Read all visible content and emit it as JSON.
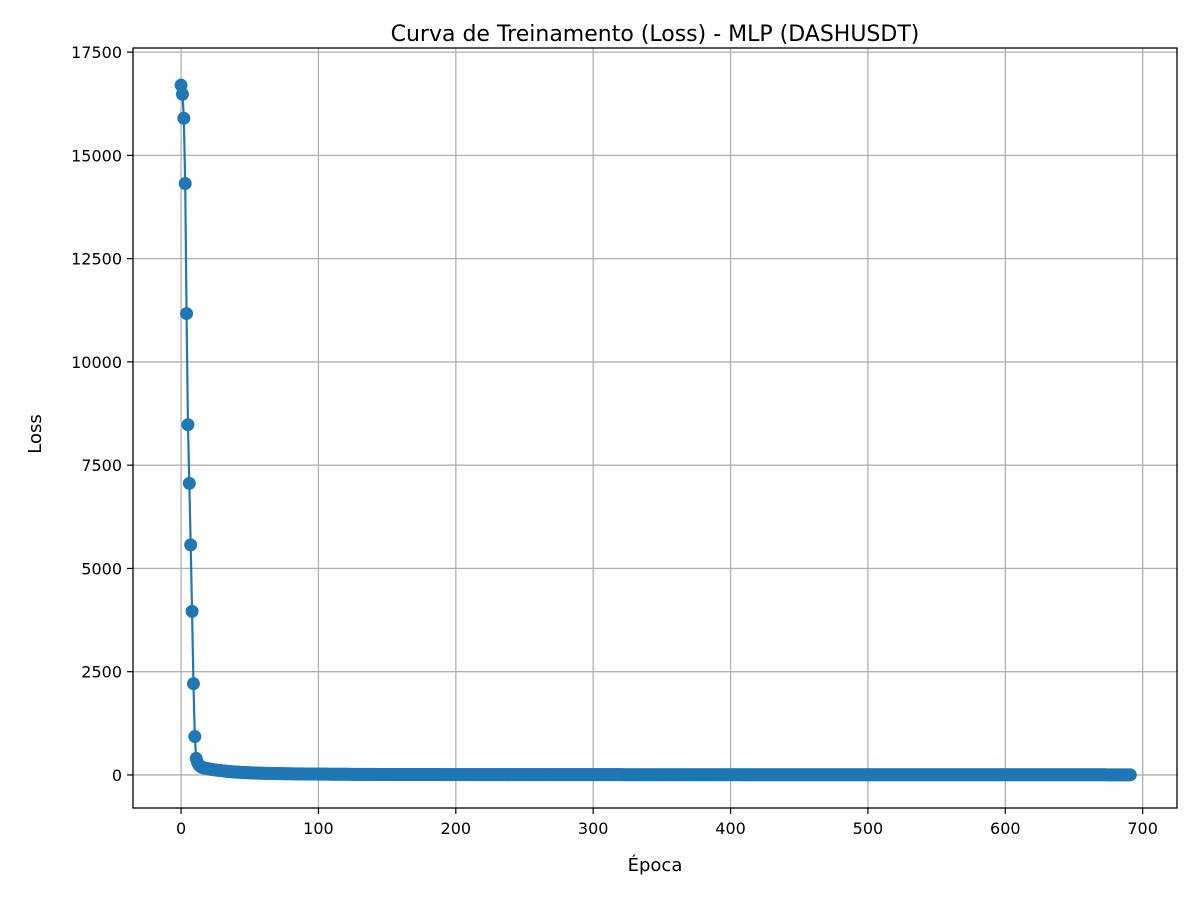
{
  "chart_data": {
    "type": "line",
    "title": "Curva de Treinamento (Loss) - MLP (DASHUSDT)",
    "xlabel": "Época",
    "ylabel": "Loss",
    "xlim": [
      -35,
      725
    ],
    "ylim": [
      -800,
      17600
    ],
    "x_ticks": [
      0,
      100,
      200,
      300,
      400,
      500,
      600,
      700
    ],
    "x_tick_labels": [
      "0",
      "100",
      "200",
      "300",
      "400",
      "500",
      "600",
      "700"
    ],
    "y_ticks": [
      0,
      2500,
      5000,
      7500,
      10000,
      12500,
      15000,
      17500
    ],
    "y_tick_labels": [
      "0",
      "2500",
      "5000",
      "7500",
      "10000",
      "12500",
      "15000",
      "17500"
    ],
    "grid": true,
    "marker": "circle",
    "color": "#1f77b4",
    "series": [
      {
        "x": [
          0,
          1,
          2,
          3,
          4,
          5,
          6,
          7,
          8,
          9,
          10,
          11,
          12,
          13,
          14,
          15,
          16,
          18,
          20,
          22,
          25,
          28,
          30,
          33,
          36,
          40,
          45,
          50,
          55,
          60,
          70,
          80,
          90,
          100,
          110,
          120,
          130,
          140,
          150,
          175,
          200,
          250,
          300,
          350,
          400,
          450,
          500,
          550,
          600,
          650,
          691
        ],
        "values": [
          16700,
          16480,
          15900,
          14320,
          11170,
          8480,
          7060,
          5570,
          3960,
          2210,
          930,
          400,
          300,
          240,
          210,
          190,
          175,
          160,
          148,
          135,
          120,
          108,
          100,
          90,
          80,
          70,
          60,
          52,
          45,
          40,
          33,
          28,
          24,
          21,
          18,
          16,
          14,
          13,
          12,
          10,
          9,
          8,
          7,
          6,
          6,
          5,
          5,
          4,
          4,
          4,
          3
        ]
      }
    ]
  }
}
